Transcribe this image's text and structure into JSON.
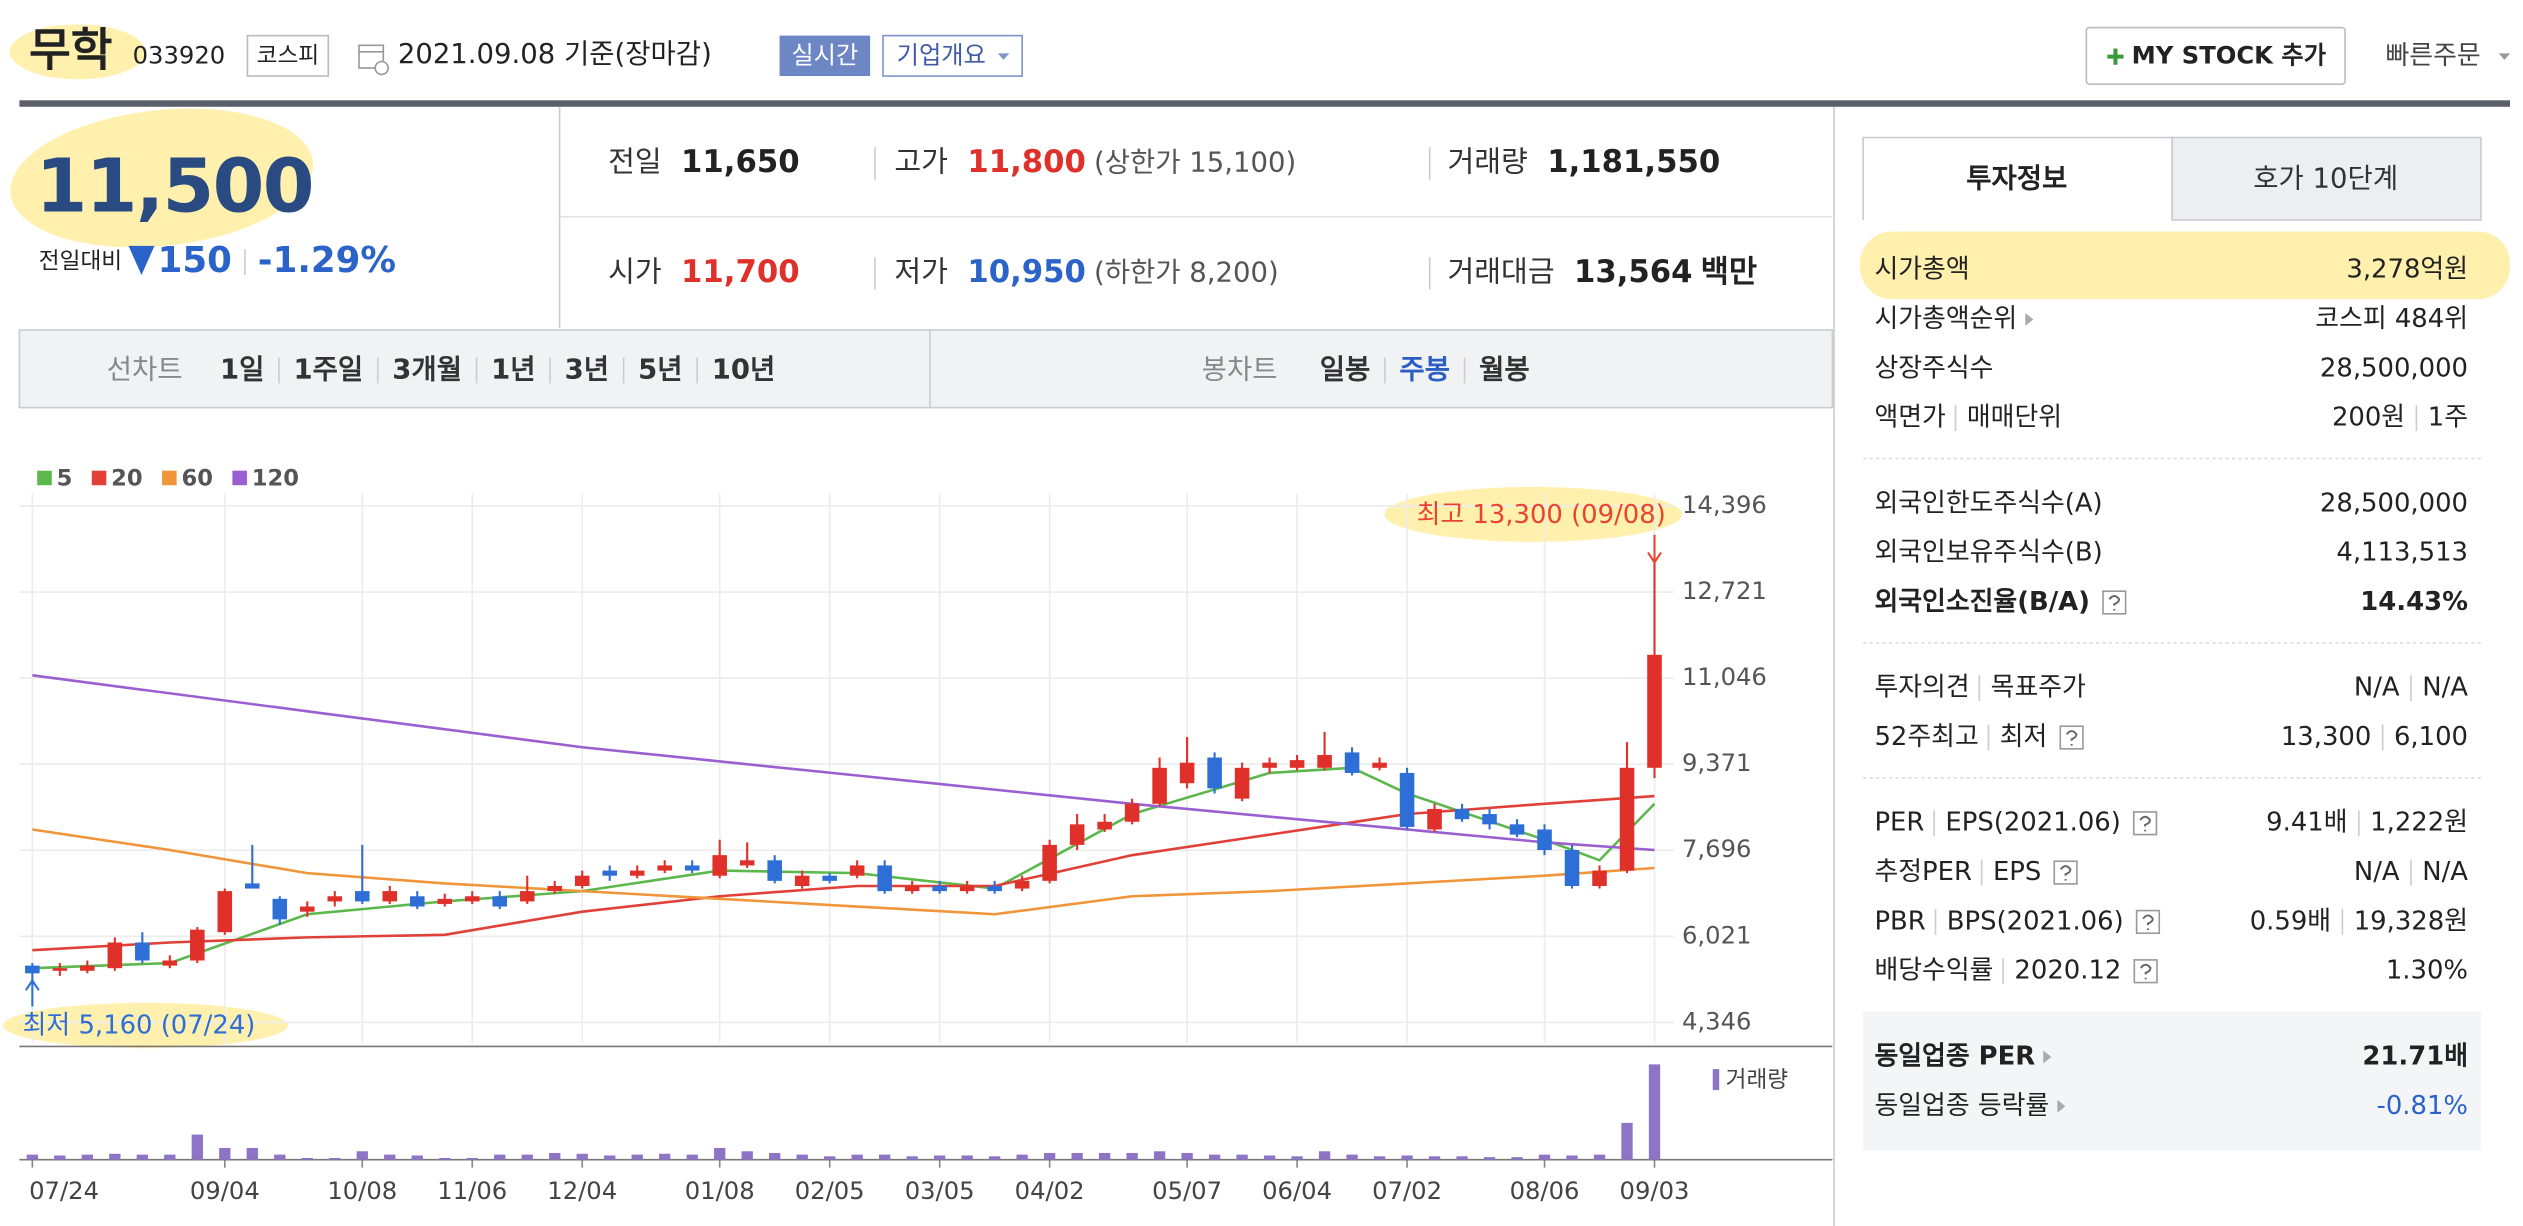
{
  "header": {
    "name": "무학",
    "code": "033920",
    "market": "코스피",
    "date": "2021.09.08 기준(장마감)",
    "realtime": "실시간",
    "company_info": "기업개요",
    "my_stock": "MY STOCK 추가",
    "quick_order": "빠른주문"
  },
  "price": {
    "current": "11,500",
    "change_label": "전일대비",
    "change": "150",
    "change_rate": "-1.29%",
    "color": "#2b63c9"
  },
  "quotes": [
    {
      "label": "전일",
      "value": "11,650"
    },
    {
      "label": "고가",
      "value": "11,800",
      "limit": "(상한가 15,100)",
      "color": "#e0302a"
    },
    {
      "label": "거래량",
      "value": "1,181,550"
    },
    {
      "label": "시가",
      "value": "11,700",
      "color": "#e0302a"
    },
    {
      "label": "저가",
      "value": "10,950",
      "limit": "(하한가 8,200)",
      "color": "#2b63c9"
    },
    {
      "label": "거래대금",
      "value": "13,564",
      "unit": "백만"
    }
  ],
  "period_tabs": {
    "line_label": "선차트",
    "line": [
      "1일",
      "1주일",
      "3개월",
      "1년",
      "3년",
      "5년",
      "10년"
    ],
    "candle_label": "봉차트",
    "candle": [
      "일봉",
      "주봉",
      "월봉"
    ],
    "selected_candle": 1
  },
  "chart_data": {
    "type": "candlestick",
    "categories": [
      "07/24",
      null,
      null,
      null,
      null,
      null,
      null,
      "09/04",
      null,
      null,
      null,
      null,
      "10/08",
      null,
      null,
      null,
      "11/06",
      null,
      null,
      null,
      "12/04",
      null,
      null,
      null,
      null,
      "01/08",
      null,
      null,
      null,
      "02/05",
      null,
      null,
      null,
      "03/05",
      null,
      null,
      null,
      "04/02",
      null,
      null,
      null,
      null,
      "05/07",
      null,
      null,
      null,
      "06/04",
      null,
      null,
      null,
      "07/02",
      null,
      null,
      null,
      null,
      "08/06",
      null,
      null,
      null,
      "09/03"
    ],
    "open": [
      5450,
      5350,
      5350,
      5400,
      5900,
      5450,
      5550,
      6100,
      7050,
      6750,
      6500,
      6700,
      6900,
      6700,
      6800,
      6650,
      6700,
      6800,
      6700,
      6900,
      7000,
      7300,
      7200,
      7300,
      7400,
      7200,
      7400,
      7500,
      7000,
      7200,
      7200,
      7400,
      6900,
      7000,
      6900,
      7000,
      6950,
      7100,
      7800,
      8100,
      8250,
      8600,
      9000,
      9500,
      8700,
      9300,
      9300,
      9300,
      9600,
      9300,
      9200,
      8100,
      8500,
      8400,
      8200,
      8100,
      7700,
      7000,
      7300,
      9300
    ],
    "high": [
      5500,
      5500,
      5550,
      6000,
      6100,
      5650,
      6200,
      6950,
      7800,
      6800,
      6700,
      6900,
      7800,
      7000,
      6900,
      6850,
      6900,
      6900,
      7200,
      7100,
      7300,
      7400,
      7400,
      7500,
      7500,
      7900,
      7850,
      7600,
      7300,
      7250,
      7500,
      7500,
      7100,
      7100,
      7100,
      7100,
      7200,
      7900,
      8400,
      8400,
      8700,
      9500,
      9900,
      9600,
      9400,
      9500,
      9550,
      10000,
      9700,
      9500,
      9300,
      8600,
      8600,
      8500,
      8300,
      8200,
      7800,
      7400,
      9800,
      13300
    ],
    "low": [
      5160,
      5250,
      5300,
      5350,
      5500,
      5400,
      5500,
      6050,
      6950,
      6250,
      6400,
      6600,
      6650,
      6650,
      6550,
      6600,
      6650,
      6550,
      6650,
      6850,
      6950,
      7100,
      7150,
      7250,
      7250,
      7150,
      7350,
      7050,
      6950,
      7050,
      7150,
      6850,
      6850,
      6850,
      6850,
      6850,
      6900,
      7050,
      7700,
      8050,
      8200,
      8550,
      8900,
      8800,
      8650,
      9200,
      9250,
      9250,
      9150,
      9250,
      8100,
      8050,
      8250,
      8100,
      7950,
      7600,
      6950,
      6950,
      7250,
      9100
    ],
    "close": [
      5300,
      5400,
      5450,
      5900,
      5550,
      5550,
      6150,
      6900,
      6950,
      6350,
      6600,
      6800,
      6700,
      6900,
      6600,
      6750,
      6800,
      6600,
      6900,
      7000,
      7200,
      7200,
      7300,
      7400,
      7300,
      7600,
      7500,
      7100,
      7200,
      7100,
      7400,
      6900,
      7000,
      6900,
      7000,
      6900,
      7100,
      7800,
      8200,
      8250,
      8600,
      9300,
      9400,
      8900,
      9300,
      9400,
      9450,
      9550,
      9200,
      9400,
      8150,
      8500,
      8300,
      8200,
      8000,
      7700,
      7000,
      7300,
      9300,
      11500
    ],
    "up_color": "#e0302a",
    "down_color": "#2d6fd6",
    "series": [
      {
        "name": "5",
        "color": "#5cb84c",
        "x": [
          0,
          5,
          10,
          15,
          20,
          25,
          30,
          35,
          40,
          45,
          48,
          50,
          55,
          57,
          59
        ],
        "values": [
          5400,
          5500,
          6450,
          6700,
          6900,
          7300,
          7250,
          6950,
          8400,
          9200,
          9300,
          8800,
          7900,
          7500,
          8600
        ]
      },
      {
        "name": "20",
        "color": "#e04038",
        "x": [
          0,
          5,
          10,
          15,
          20,
          25,
          30,
          35,
          40,
          45,
          50,
          55,
          59
        ],
        "values": [
          5750,
          5900,
          6000,
          6050,
          6500,
          6800,
          7000,
          7000,
          7600,
          8000,
          8400,
          8600,
          8750
        ]
      },
      {
        "name": "60",
        "color": "#f0953a",
        "x": [
          0,
          5,
          10,
          15,
          20,
          25,
          30,
          35,
          40,
          45,
          50,
          55,
          59
        ],
        "values": [
          8100,
          7700,
          7250,
          7050,
          6900,
          6750,
          6600,
          6450,
          6800,
          6900,
          7050,
          7200,
          7350
        ]
      },
      {
        "name": "120",
        "color": "#9a5fd0",
        "x": [
          0,
          10,
          20,
          30,
          40,
          50,
          55,
          59
        ],
        "values": [
          11100,
          10400,
          9700,
          9150,
          8600,
          8100,
          7850,
          7700
        ]
      }
    ],
    "ylim": [
      3940,
      14800
    ],
    "yticks": [
      {
        "value": 4346,
        "label": "4,346"
      },
      {
        "value": 6021,
        "label": "6,021"
      },
      {
        "value": 7696,
        "label": "7,696"
      },
      {
        "value": 9371,
        "label": "9,371"
      },
      {
        "value": 11046,
        "label": "11,046"
      },
      {
        "value": 12721,
        "label": "12,721"
      },
      {
        "value": 14396,
        "label": "14,396"
      }
    ],
    "grid": true,
    "annotations": [
      {
        "text": "최고 13,300 (09/08)",
        "x": 59,
        "y": 13300,
        "color": "#e8452f"
      },
      {
        "text": "최저 5,160 (07/24)",
        "x": 0,
        "y": 5160,
        "color": "#2d6fd6"
      }
    ],
    "volume_label": "거래량",
    "volume_color": "#8d74c7",
    "volume_ylim": [
      0,
      6000000
    ],
    "volume": [
      300000,
      250000,
      300000,
      350000,
      300000,
      300000,
      1500000,
      700000,
      700000,
      300000,
      100000,
      100000,
      500000,
      300000,
      250000,
      100000,
      100000,
      300000,
      300000,
      400000,
      350000,
      250000,
      300000,
      350000,
      300000,
      700000,
      500000,
      400000,
      300000,
      200000,
      300000,
      300000,
      200000,
      250000,
      250000,
      200000,
      300000,
      400000,
      400000,
      400000,
      400000,
      500000,
      400000,
      300000,
      300000,
      250000,
      200000,
      500000,
      300000,
      200000,
      250000,
      200000,
      200000,
      150000,
      150000,
      300000,
      250000,
      300000,
      2200000,
      5700000
    ]
  },
  "info_tabs": [
    "투자정보",
    "호가 10단계"
  ],
  "info": [
    {
      "rows": [
        {
          "label": [
            "시가총액"
          ],
          "value": [
            "3,278억원"
          ]
        },
        {
          "label": [
            "시가총액순위"
          ],
          "arrow": true,
          "value": [
            "코스피 484위"
          ]
        },
        {
          "label": [
            "상장주식수"
          ],
          "value": [
            "28,500,000"
          ]
        },
        {
          "label": [
            "액면가",
            "매매단위"
          ],
          "value": [
            "200원",
            "1주"
          ]
        }
      ]
    },
    {
      "rows": [
        {
          "label": [
            "외국인한도주식수(A)"
          ],
          "value": [
            "28,500,000"
          ]
        },
        {
          "label": [
            "외국인보유주식수(B)"
          ],
          "value": [
            "4,113,513"
          ]
        },
        {
          "label": [
            "외국인소진율(B/A)"
          ],
          "help": true,
          "bold": true,
          "value": [
            "14.43%"
          ]
        }
      ]
    },
    {
      "rows": [
        {
          "label": [
            "투자의견",
            "목표주가"
          ],
          "value": [
            "N/A",
            "N/A"
          ]
        },
        {
          "label": [
            "52주최고",
            "최저"
          ],
          "help": true,
          "value": [
            "13,300",
            "6,100"
          ]
        }
      ]
    },
    {
      "rows": [
        {
          "label": [
            "PER",
            "EPS(2021.06)"
          ],
          "help": true,
          "value": [
            "9.41배",
            "1,222원"
          ]
        },
        {
          "label": [
            "추정PER",
            "EPS"
          ],
          "help": true,
          "value": [
            "N/A",
            "N/A"
          ]
        },
        {
          "label": [
            "PBR",
            "BPS(2021.06)"
          ],
          "help": true,
          "value": [
            "0.59배",
            "19,328원"
          ]
        },
        {
          "label": [
            "배당수익률",
            "2020.12"
          ],
          "help": true,
          "value": [
            "1.30%"
          ]
        }
      ]
    },
    {
      "shaded": true,
      "rows": [
        {
          "label": [
            "동일업종 PER"
          ],
          "arrow": true,
          "bold": true,
          "value": [
            "21.71배"
          ]
        },
        {
          "label": [
            "동일업종 등락률"
          ],
          "arrow": true,
          "value": [
            "-0.81%"
          ],
          "color": "#2b63c9"
        }
      ]
    }
  ]
}
